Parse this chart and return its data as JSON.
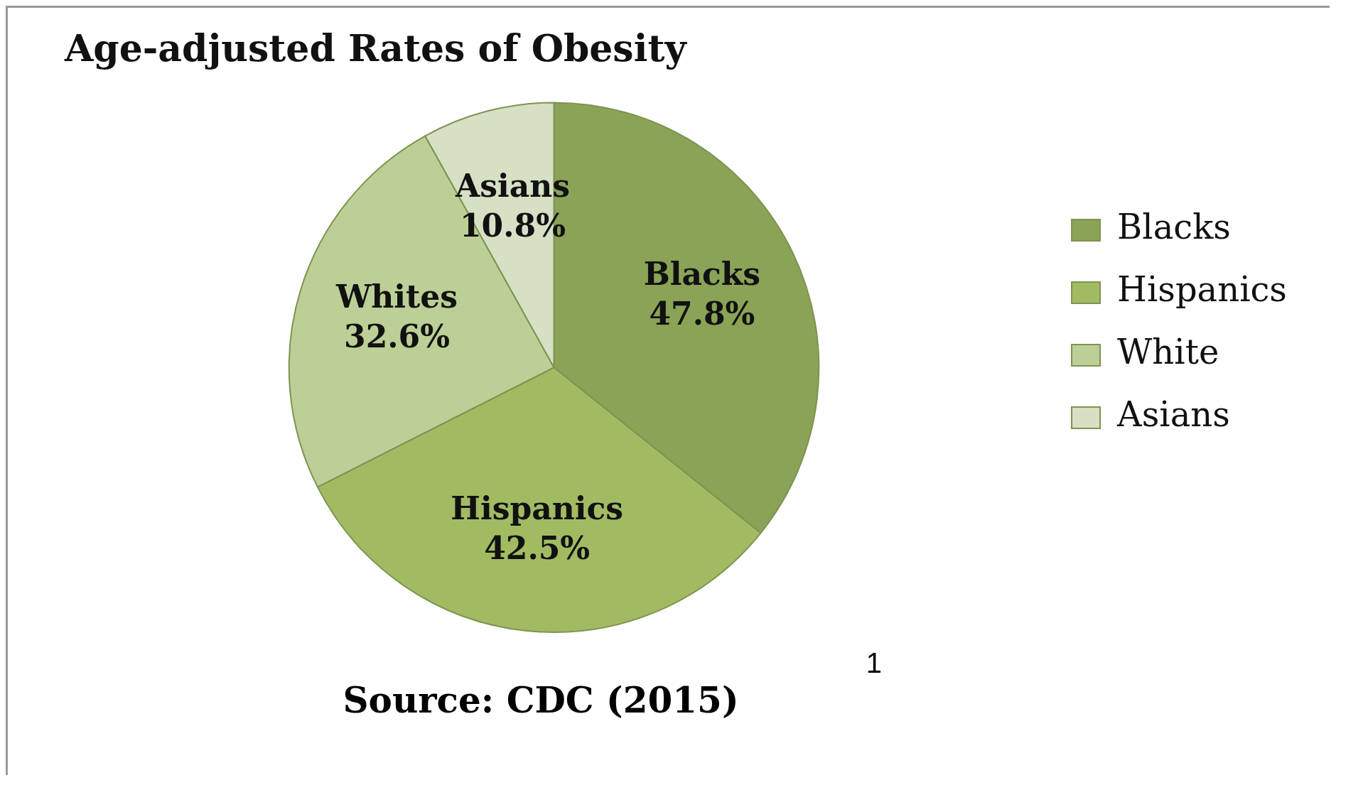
{
  "chart_data": {
    "type": "pie",
    "title": "Age-adjusted Rates of Obesity",
    "categories": [
      "Blacks",
      "Hispanics",
      "White",
      "Asians"
    ],
    "values": [
      47.8,
      42.5,
      32.6,
      10.8
    ],
    "colors": [
      "#8aa357",
      "#a2bb63",
      "#bccf96",
      "#d6e0c5"
    ],
    "value_labels": [
      "Blacks\n47.8%",
      "Hispanics\n42.5%",
      "Whites\n32.6%",
      "Asians\n10.8%"
    ],
    "legend": "right",
    "annotations": [
      "1",
      "Source: CDC (2015)"
    ]
  }
}
